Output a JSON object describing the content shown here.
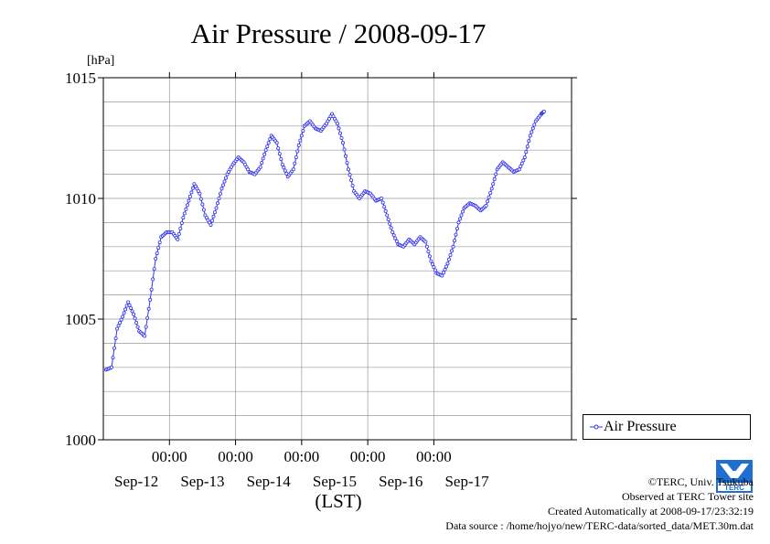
{
  "chart_data": {
    "type": "line",
    "title": "Air Pressure / 2008-09-17",
    "ylabel": "[hPa]",
    "xlabel": "(LST)",
    "ylim": [
      1000,
      1015
    ],
    "yticks": [
      "1000",
      "1005",
      "1010",
      "1015"
    ],
    "time_tick_label": "00:00",
    "date_labels": [
      "Sep-12",
      "Sep-13",
      "Sep-14",
      "Sep-15",
      "Sep-16",
      "Sep-17"
    ],
    "grid": true,
    "legend_position": "right-bottom",
    "series": [
      {
        "name": "Air Pressure",
        "color": "#3333ee",
        "points": [
          [
            "2008-09-11 01:00",
            1002.9
          ],
          [
            "2008-09-11 03:00",
            1003.0
          ],
          [
            "2008-09-11 05:00",
            1004.6
          ],
          [
            "2008-09-11 07:00",
            1005.1
          ],
          [
            "2008-09-11 09:00",
            1005.7
          ],
          [
            "2008-09-11 11:00",
            1005.2
          ],
          [
            "2008-09-11 13:00",
            1004.5
          ],
          [
            "2008-09-11 15:00",
            1004.3
          ],
          [
            "2008-09-11 17:00",
            1005.8
          ],
          [
            "2008-09-11 19:00",
            1007.5
          ],
          [
            "2008-09-11 21:00",
            1008.4
          ],
          [
            "2008-09-11 23:00",
            1008.6
          ],
          [
            "2008-09-12 01:00",
            1008.6
          ],
          [
            "2008-09-12 03:00",
            1008.3
          ],
          [
            "2008-09-12 05:00",
            1009.2
          ],
          [
            "2008-09-12 07:00",
            1009.9
          ],
          [
            "2008-09-12 09:00",
            1010.6
          ],
          [
            "2008-09-12 11:00",
            1010.2
          ],
          [
            "2008-09-12 13:00",
            1009.3
          ],
          [
            "2008-09-12 15:00",
            1008.9
          ],
          [
            "2008-09-12 17:00",
            1009.6
          ],
          [
            "2008-09-12 19:00",
            1010.4
          ],
          [
            "2008-09-12 21:00",
            1011.0
          ],
          [
            "2008-09-12 23:00",
            1011.4
          ],
          [
            "2008-09-13 01:00",
            1011.7
          ],
          [
            "2008-09-13 03:00",
            1011.5
          ],
          [
            "2008-09-13 05:00",
            1011.1
          ],
          [
            "2008-09-13 07:00",
            1011.0
          ],
          [
            "2008-09-13 09:00",
            1011.3
          ],
          [
            "2008-09-13 11:00",
            1012.0
          ],
          [
            "2008-09-13 13:00",
            1012.6
          ],
          [
            "2008-09-13 15:00",
            1012.3
          ],
          [
            "2008-09-13 17:00",
            1011.4
          ],
          [
            "2008-09-13 19:00",
            1010.9
          ],
          [
            "2008-09-13 21:00",
            1011.2
          ],
          [
            "2008-09-13 23:00",
            1012.2
          ],
          [
            "2008-09-14 01:00",
            1013.0
          ],
          [
            "2008-09-14 03:00",
            1013.2
          ],
          [
            "2008-09-14 05:00",
            1012.9
          ],
          [
            "2008-09-14 07:00",
            1012.8
          ],
          [
            "2008-09-14 09:00",
            1013.1
          ],
          [
            "2008-09-14 11:00",
            1013.5
          ],
          [
            "2008-09-14 13:00",
            1013.1
          ],
          [
            "2008-09-14 15:00",
            1012.3
          ],
          [
            "2008-09-14 17:00",
            1011.2
          ],
          [
            "2008-09-14 19:00",
            1010.3
          ],
          [
            "2008-09-14 21:00",
            1010.0
          ],
          [
            "2008-09-14 23:00",
            1010.3
          ],
          [
            "2008-09-15 01:00",
            1010.2
          ],
          [
            "2008-09-15 03:00",
            1009.9
          ],
          [
            "2008-09-15 05:00",
            1010.0
          ],
          [
            "2008-09-15 07:00",
            1009.3
          ],
          [
            "2008-09-15 09:00",
            1008.6
          ],
          [
            "2008-09-15 11:00",
            1008.1
          ],
          [
            "2008-09-15 13:00",
            1008.0
          ],
          [
            "2008-09-15 15:00",
            1008.3
          ],
          [
            "2008-09-15 17:00",
            1008.1
          ],
          [
            "2008-09-15 19:00",
            1008.4
          ],
          [
            "2008-09-15 21:00",
            1008.2
          ],
          [
            "2008-09-15 23:00",
            1007.4
          ],
          [
            "2008-09-16 01:00",
            1006.9
          ],
          [
            "2008-09-16 03:00",
            1006.8
          ],
          [
            "2008-09-16 05:00",
            1007.3
          ],
          [
            "2008-09-16 07:00",
            1008.0
          ],
          [
            "2008-09-16 09:00",
            1009.0
          ],
          [
            "2008-09-16 11:00",
            1009.6
          ],
          [
            "2008-09-16 13:00",
            1009.8
          ],
          [
            "2008-09-16 15:00",
            1009.7
          ],
          [
            "2008-09-16 17:00",
            1009.5
          ],
          [
            "2008-09-16 19:00",
            1009.7
          ],
          [
            "2008-09-16 21:00",
            1010.4
          ],
          [
            "2008-09-16 23:00",
            1011.2
          ],
          [
            "2008-09-17 01:00",
            1011.5
          ],
          [
            "2008-09-17 03:00",
            1011.3
          ],
          [
            "2008-09-17 05:00",
            1011.1
          ],
          [
            "2008-09-17 07:00",
            1011.2
          ],
          [
            "2008-09-17 09:00",
            1011.7
          ],
          [
            "2008-09-17 11:00",
            1012.6
          ],
          [
            "2008-09-17 13:00",
            1013.2
          ],
          [
            "2008-09-17 15:00",
            1013.5
          ],
          [
            "2008-09-17 16:00",
            1013.6
          ]
        ]
      }
    ]
  },
  "footer": {
    "copyright": "©TERC, Univ. Tsukuba",
    "observed": "Observed at TERC Tower site",
    "created": "Created Automatically at 2008-09-17/23:32:19",
    "source": "Data source : /home/hojyo/new/TERC-data/sorted_data/MET.30m.dat"
  },
  "logo": {
    "text": "TERC",
    "color": "#1e6fd0"
  }
}
